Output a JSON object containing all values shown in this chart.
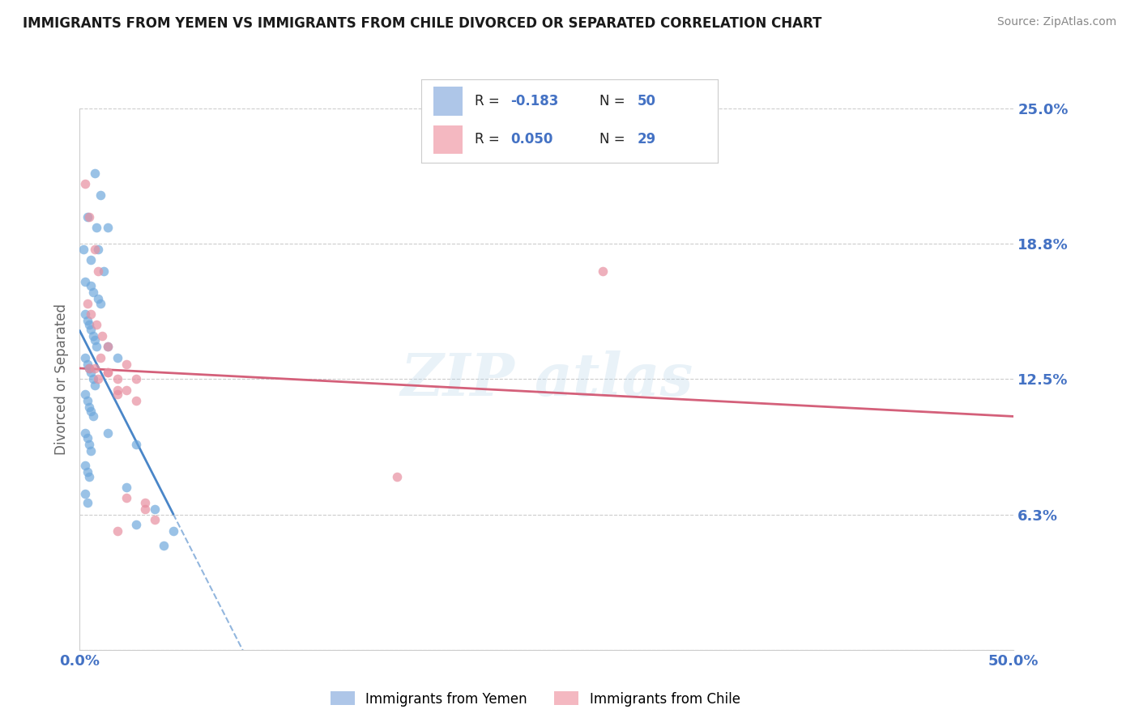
{
  "title": "IMMIGRANTS FROM YEMEN VS IMMIGRANTS FROM CHILE DIVORCED OR SEPARATED CORRELATION CHART",
  "source": "Source: ZipAtlas.com",
  "ylabel": "Divorced or Separated",
  "xlim": [
    0.0,
    0.5
  ],
  "ylim": [
    0.0,
    0.25
  ],
  "ytick_vals": [
    0.0,
    0.0625,
    0.125,
    0.1875,
    0.25
  ],
  "ytick_labels": [
    "",
    "6.3%",
    "12.5%",
    "18.8%",
    "25.0%"
  ],
  "xtick_vals": [
    0.0,
    0.5
  ],
  "xtick_labels": [
    "0.0%",
    "50.0%"
  ],
  "legend1_color": "#aec6e8",
  "legend2_color": "#f4b8c1",
  "series1_color": "#6fa8dc",
  "series2_color": "#e88fa0",
  "trendline1_solid_color": "#4a86c8",
  "trendline2_color": "#d4607a",
  "axis_label_color": "#4472c4",
  "ylabel_color": "#666666",
  "grid_color": "#cccccc",
  "bottom_legend1": "Immigrants from Yemen",
  "bottom_legend2": "Immigrants from Chile",
  "yemen_x": [
    0.008,
    0.011,
    0.004,
    0.009,
    0.015,
    0.002,
    0.006,
    0.01,
    0.013,
    0.003,
    0.006,
    0.007,
    0.01,
    0.011,
    0.003,
    0.004,
    0.005,
    0.006,
    0.007,
    0.008,
    0.009,
    0.003,
    0.004,
    0.005,
    0.006,
    0.007,
    0.008,
    0.003,
    0.004,
    0.005,
    0.006,
    0.007,
    0.003,
    0.004,
    0.005,
    0.006,
    0.003,
    0.004,
    0.005,
    0.003,
    0.004,
    0.015,
    0.02,
    0.015,
    0.03,
    0.025,
    0.04,
    0.03,
    0.05,
    0.045
  ],
  "yemen_y": [
    0.22,
    0.21,
    0.2,
    0.195,
    0.195,
    0.185,
    0.18,
    0.185,
    0.175,
    0.17,
    0.168,
    0.165,
    0.162,
    0.16,
    0.155,
    0.152,
    0.15,
    0.148,
    0.145,
    0.143,
    0.14,
    0.135,
    0.132,
    0.13,
    0.128,
    0.125,
    0.122,
    0.118,
    0.115,
    0.112,
    0.11,
    0.108,
    0.1,
    0.098,
    0.095,
    0.092,
    0.085,
    0.082,
    0.08,
    0.072,
    0.068,
    0.14,
    0.135,
    0.1,
    0.095,
    0.075,
    0.065,
    0.058,
    0.055,
    0.048
  ],
  "chile_x": [
    0.003,
    0.005,
    0.008,
    0.01,
    0.004,
    0.006,
    0.009,
    0.012,
    0.015,
    0.005,
    0.008,
    0.011,
    0.015,
    0.02,
    0.01,
    0.015,
    0.02,
    0.025,
    0.03,
    0.02,
    0.025,
    0.03,
    0.025,
    0.035,
    0.28,
    0.17,
    0.035,
    0.02,
    0.04
  ],
  "chile_y": [
    0.215,
    0.2,
    0.185,
    0.175,
    0.16,
    0.155,
    0.15,
    0.145,
    0.14,
    0.13,
    0.13,
    0.135,
    0.128,
    0.125,
    0.125,
    0.128,
    0.12,
    0.132,
    0.125,
    0.118,
    0.12,
    0.115,
    0.07,
    0.065,
    0.175,
    0.08,
    0.068,
    0.055,
    0.06
  ]
}
